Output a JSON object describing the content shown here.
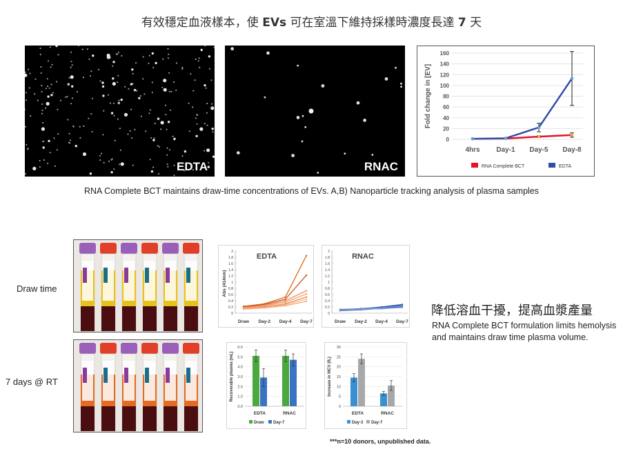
{
  "title": {
    "prefix": "有效穩定血液樣本，使 ",
    "evs": "EVs",
    "middle": " 可在室溫下維持採樣時濃度長達 ",
    "days": "7",
    "suffix": " 天"
  },
  "micrographs": {
    "edta_label": "EDTA",
    "rnac_label": "RNAC"
  },
  "caption": "RNA Complete BCT maintains draw-time concentrations of EVs. A,B) Nanoparticle tracking analysis of plasma samples",
  "rows": {
    "draw_time": "Draw time",
    "seven_days": "7 days @ RT"
  },
  "right_text": {
    "heading": "降低溶血干擾，提高血漿產量",
    "body": "RNA Complete BCT formulation limits hemolysis and maintains draw time plasma volume."
  },
  "note": "***n=10 donors, unpublished data.",
  "colors": {
    "rnac_red": "#e8102a",
    "edta_blue": "#2e4fa8",
    "orange": "#e8812a",
    "blue_line": "#3a63b0",
    "green": "#4aa83e",
    "bar_blue": "#3a72c4",
    "light_blue": "#3a8fd0",
    "grey": "#a8a8a8"
  },
  "chart_data": [
    {
      "type": "line",
      "ylabel": "Fold change in [EV]",
      "categories": [
        "4hrs",
        "Day-1",
        "Day-5",
        "Day-8"
      ],
      "yticks": [
        "0",
        "20",
        "40",
        "60",
        "80",
        "100",
        "120",
        "140",
        "160"
      ],
      "ylim": [
        0,
        160
      ],
      "grid": true,
      "legend_position": "bottom",
      "series": [
        {
          "name": "RNA Complete BCT",
          "values": [
            1,
            1.5,
            5,
            8
          ],
          "err": [
            0,
            0,
            1.5,
            4
          ]
        },
        {
          "name": "EDTA",
          "values": [
            1,
            2,
            22,
            113
          ],
          "err": [
            0,
            0,
            8,
            50
          ]
        }
      ]
    },
    {
      "type": "line",
      "title": "EDTA",
      "ylabel": "Abs (414nm)",
      "categories": [
        "Draw",
        "Day-2",
        "Day-4",
        "Day-7"
      ],
      "yticks": [
        "0",
        "0.2",
        "0.4",
        "0.6",
        "0.8",
        "1",
        "1.2",
        "1.4",
        "1.6",
        "1.8",
        "2"
      ],
      "ylim": [
        0,
        2
      ],
      "series": [
        {
          "values": [
            0.22,
            0.3,
            0.52,
            1.85
          ]
        },
        {
          "values": [
            0.2,
            0.28,
            0.45,
            1.22
          ]
        },
        {
          "values": [
            0.18,
            0.25,
            0.4,
            0.72
          ]
        },
        {
          "values": [
            0.17,
            0.23,
            0.35,
            0.62
          ]
        },
        {
          "values": [
            0.15,
            0.2,
            0.3,
            0.52
          ]
        },
        {
          "values": [
            0.14,
            0.18,
            0.27,
            0.45
          ]
        },
        {
          "values": [
            0.13,
            0.17,
            0.24,
            0.38
          ]
        }
      ]
    },
    {
      "type": "line",
      "title": "RNAC",
      "categories": [
        "Draw",
        "Day-2",
        "Day-4",
        "Day-7"
      ],
      "yticks": [
        "0",
        "0.2",
        "0.4",
        "0.6",
        "0.8",
        "1",
        "1.2",
        "1.4",
        "1.6",
        "1.8",
        "2"
      ],
      "ylim": [
        0,
        2
      ],
      "series": [
        {
          "values": [
            0.12,
            0.14,
            0.2,
            0.28
          ]
        },
        {
          "values": [
            0.1,
            0.15,
            0.18,
            0.25
          ]
        },
        {
          "values": [
            0.09,
            0.12,
            0.17,
            0.22
          ]
        },
        {
          "values": [
            0.08,
            0.11,
            0.15,
            0.2
          ]
        },
        {
          "values": [
            0.1,
            0.13,
            0.14,
            0.18
          ]
        }
      ]
    },
    {
      "type": "bar",
      "ylabel": "Recoverable plasma (mL)",
      "categories": [
        "EDTA",
        "RNAC"
      ],
      "yticks": [
        "0.0",
        "1.0",
        "2.0",
        "3.0",
        "4.0",
        "5.0",
        "6.0"
      ],
      "ylim": [
        0,
        6
      ],
      "legend_position": "bottom",
      "series": [
        {
          "name": "Draw",
          "values": [
            5.1,
            5.1
          ],
          "err": [
            0.6,
            0.6
          ]
        },
        {
          "name": "Day-7",
          "values": [
            2.9,
            4.7
          ],
          "err": [
            0.9,
            0.6
          ]
        }
      ]
    },
    {
      "type": "bar",
      "ylabel": "Increase in MCV (fL)",
      "categories": [
        "EDTA",
        "RNAC"
      ],
      "yticks": [
        "0",
        "5",
        "10",
        "15",
        "20",
        "25",
        "30"
      ],
      "ylim": [
        0,
        30
      ],
      "legend_position": "bottom",
      "series": [
        {
          "name": "Day-3",
          "values": [
            14.5,
            6.5
          ],
          "err": [
            2,
            1
          ]
        },
        {
          "name": "Day-7",
          "values": [
            24,
            10.5
          ],
          "err": [
            2.5,
            2.5
          ]
        }
      ]
    }
  ]
}
